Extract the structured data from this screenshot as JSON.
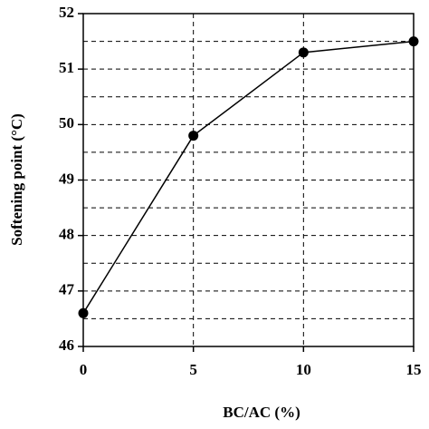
{
  "chart_data": {
    "type": "line",
    "x_label": "BC/AC (%)",
    "y_label": "Softening point (°C)",
    "x": [
      0,
      5,
      10,
      15
    ],
    "series": [
      {
        "color": "#000000",
        "values": [
          46.6,
          49.8,
          51.3,
          51.5
        ]
      }
    ],
    "xlim": [
      0,
      15
    ],
    "xticks": [
      0,
      5,
      10,
      15
    ],
    "ylim": [
      46,
      52
    ],
    "yticks": [
      46,
      47,
      48,
      49,
      50,
      51,
      52
    ],
    "y_minor_ticks": [
      46.5,
      47.5,
      48.5,
      49.5,
      50.5,
      51.5
    ],
    "grid": true
  }
}
